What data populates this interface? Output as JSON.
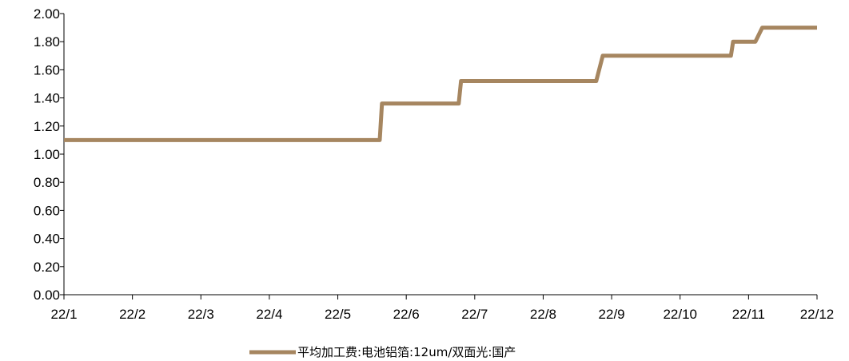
{
  "chart_data": {
    "type": "line",
    "title": "",
    "xlabel": "",
    "ylabel": "",
    "ylim": [
      0,
      2.0
    ],
    "y_ticks": [
      "0.00",
      "0.20",
      "0.40",
      "0.60",
      "0.80",
      "1.00",
      "1.20",
      "1.40",
      "1.60",
      "1.80",
      "2.00"
    ],
    "x_ticks": [
      "22/1",
      "22/2",
      "22/3",
      "22/4",
      "22/5",
      "22/6",
      "22/7",
      "22/8",
      "22/9",
      "22/10",
      "22/11",
      "22/12"
    ],
    "grid": false,
    "legend_position": "bottom",
    "series": [
      {
        "name": "平均加工费:电池铝箔:12um/双面光:国产",
        "color": "#A68660",
        "step": true,
        "points": [
          {
            "x": "2022-01-01",
            "y": 1.1
          },
          {
            "x": "2022-05-20",
            "y": 1.1
          },
          {
            "x": "2022-05-21",
            "y": 1.36
          },
          {
            "x": "2022-06-24",
            "y": 1.36
          },
          {
            "x": "2022-06-25",
            "y": 1.52
          },
          {
            "x": "2022-08-25",
            "y": 1.52
          },
          {
            "x": "2022-08-28",
            "y": 1.7
          },
          {
            "x": "2022-10-24",
            "y": 1.7
          },
          {
            "x": "2022-10-25",
            "y": 1.8
          },
          {
            "x": "2022-11-04",
            "y": 1.8
          },
          {
            "x": "2022-11-07",
            "y": 1.9
          },
          {
            "x": "2022-12-01",
            "y": 1.9
          }
        ]
      }
    ]
  }
}
